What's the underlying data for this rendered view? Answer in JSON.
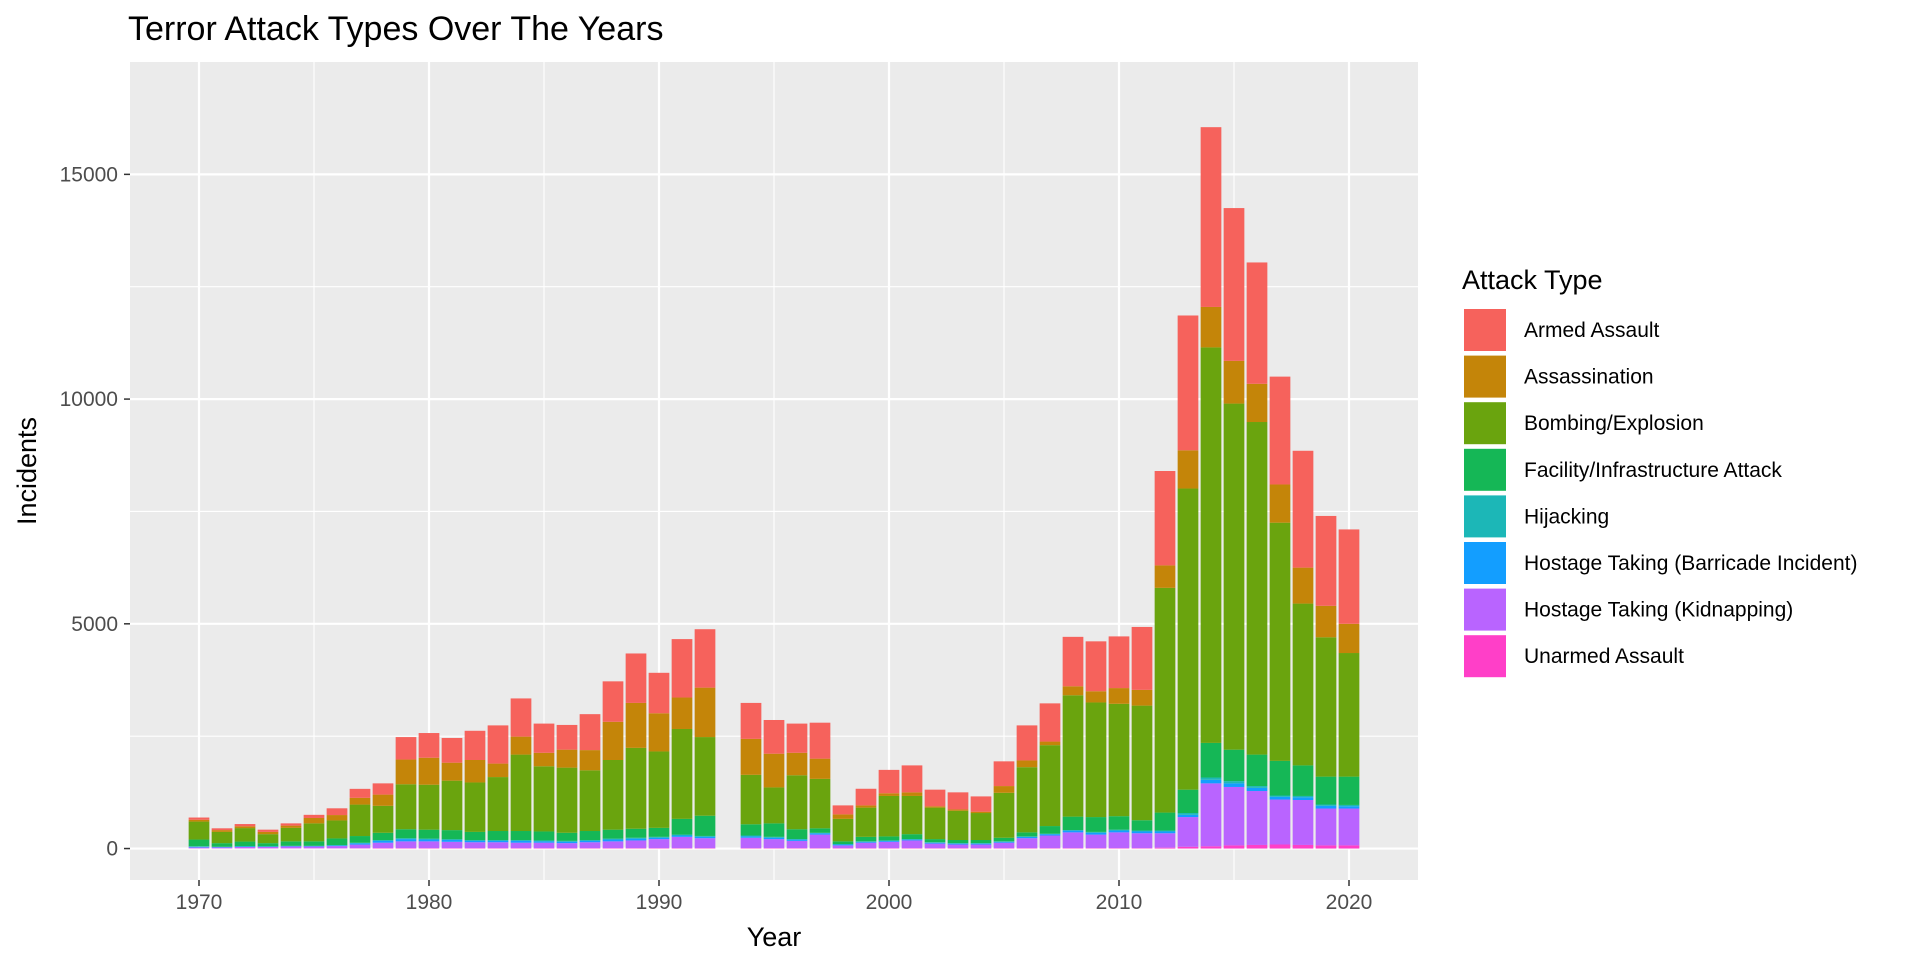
{
  "chart_data": {
    "type": "bar",
    "stacked": true,
    "title": "Terror Attack Types Over The Years",
    "xlabel": "Year",
    "ylabel": "Incidents",
    "xlim": [
      1967,
      2023
    ],
    "ylim": [
      -700,
      17500
    ],
    "x_ticks": [
      1970,
      1980,
      1990,
      2000,
      2010,
      2020
    ],
    "y_ticks": [
      0,
      5000,
      10000,
      15000
    ],
    "grid": true,
    "legend": {
      "title": "Attack Type",
      "position": "right"
    },
    "x": [
      1970,
      1971,
      1972,
      1973,
      1974,
      1975,
      1976,
      1977,
      1978,
      1979,
      1980,
      1981,
      1982,
      1983,
      1984,
      1985,
      1986,
      1987,
      1988,
      1989,
      1990,
      1991,
      1992,
      1994,
      1995,
      1996,
      1997,
      1998,
      1999,
      2000,
      2001,
      2002,
      2003,
      2004,
      2005,
      2006,
      2007,
      2008,
      2009,
      2010,
      2011,
      2012,
      2013,
      2014,
      2015,
      2016,
      2017,
      2018,
      2019,
      2020
    ],
    "series": [
      {
        "name": "Unarmed Assault",
        "color": "#FF3FC8",
        "values": [
          5,
          5,
          5,
          5,
          5,
          5,
          5,
          8,
          10,
          10,
          10,
          10,
          10,
          10,
          10,
          10,
          10,
          10,
          10,
          10,
          10,
          10,
          10,
          10,
          10,
          10,
          10,
          10,
          10,
          10,
          10,
          10,
          10,
          10,
          10,
          10,
          10,
          10,
          10,
          10,
          10,
          20,
          40,
          50,
          70,
          80,
          90,
          80,
          70,
          70
        ]
      },
      {
        "name": "Hostage Taking (Kidnapping)",
        "color": "#B964FF",
        "values": [
          20,
          20,
          30,
          30,
          40,
          40,
          50,
          80,
          120,
          150,
          150,
          140,
          130,
          130,
          120,
          120,
          110,
          130,
          150,
          170,
          200,
          250,
          220,
          230,
          200,
          160,
          300,
          60,
          120,
          140,
          170,
          100,
          80,
          80,
          120,
          220,
          280,
          350,
          300,
          350,
          330,
          320,
          660,
          1400,
          1300,
          1200,
          1000,
          1000,
          820,
          820
        ]
      },
      {
        "name": "Hostage Taking (Barricade Incident)",
        "color": "#139EFF",
        "values": [
          15,
          10,
          10,
          10,
          10,
          10,
          15,
          30,
          40,
          50,
          40,
          40,
          30,
          30,
          40,
          30,
          30,
          30,
          40,
          40,
          30,
          30,
          30,
          30,
          30,
          30,
          30,
          20,
          20,
          20,
          20,
          20,
          20,
          20,
          20,
          30,
          30,
          40,
          40,
          40,
          40,
          40,
          50,
          80,
          80,
          70,
          60,
          60,
          60,
          50
        ]
      },
      {
        "name": "Hijacking",
        "color": "#1CB7B7",
        "values": [
          10,
          5,
          10,
          5,
          5,
          5,
          5,
          10,
          20,
          20,
          20,
          20,
          20,
          20,
          20,
          20,
          20,
          20,
          20,
          20,
          20,
          20,
          20,
          20,
          20,
          10,
          10,
          10,
          10,
          10,
          10,
          10,
          10,
          10,
          10,
          10,
          10,
          10,
          20,
          20,
          20,
          20,
          40,
          50,
          50,
          40,
          30,
          30,
          30,
          30
        ]
      },
      {
        "name": "Facility/Infrastructure Attack",
        "color": "#15B756",
        "values": [
          150,
          80,
          100,
          70,
          100,
          100,
          150,
          150,
          160,
          200,
          200,
          200,
          180,
          200,
          200,
          200,
          180,
          200,
          200,
          200,
          200,
          350,
          450,
          250,
          300,
          220,
          100,
          60,
          100,
          90,
          110,
          70,
          70,
          70,
          80,
          90,
          170,
          300,
          330,
          300,
          230,
          400,
          520,
          770,
          700,
          700,
          770,
          680,
          620,
          630
        ]
      },
      {
        "name": "Bombing/Explosion",
        "color": "#6AA40E",
        "values": [
          400,
          250,
          300,
          200,
          300,
          400,
          400,
          700,
          600,
          1000,
          1000,
          1100,
          1100,
          1200,
          1700,
          1450,
          1450,
          1350,
          1550,
          1800,
          1700,
          2000,
          1750,
          1100,
          800,
          1200,
          1100,
          500,
          650,
          900,
          850,
          700,
          650,
          600,
          1000,
          1450,
          1800,
          2700,
          2550,
          2500,
          2550,
          5000,
          6700,
          8800,
          7700,
          7400,
          5300,
          3600,
          3100,
          2750
        ]
      },
      {
        "name": "Assassination",
        "color": "#C48509",
        "values": [
          40,
          40,
          40,
          50,
          50,
          120,
          120,
          150,
          250,
          550,
          600,
          400,
          500,
          300,
          400,
          300,
          400,
          450,
          850,
          1000,
          850,
          700,
          1100,
          800,
          750,
          500,
          450,
          100,
          50,
          60,
          80,
          30,
          30,
          30,
          150,
          150,
          80,
          200,
          250,
          350,
          350,
          500,
          850,
          900,
          950,
          850,
          850,
          800,
          700,
          650
        ]
      },
      {
        "name": "Armed Assault",
        "color": "#F6625C",
        "values": [
          50,
          40,
          50,
          50,
          50,
          70,
          150,
          200,
          250,
          500,
          550,
          550,
          650,
          850,
          850,
          650,
          550,
          800,
          900,
          1100,
          900,
          1300,
          1300,
          800,
          750,
          650,
          800,
          200,
          370,
          520,
          600,
          370,
          380,
          340,
          550,
          780,
          850,
          1100,
          1110,
          1150,
          1400,
          2100,
          3000,
          4000,
          3400,
          2700,
          2400,
          2600,
          2000,
          2100
        ]
      }
    ]
  }
}
